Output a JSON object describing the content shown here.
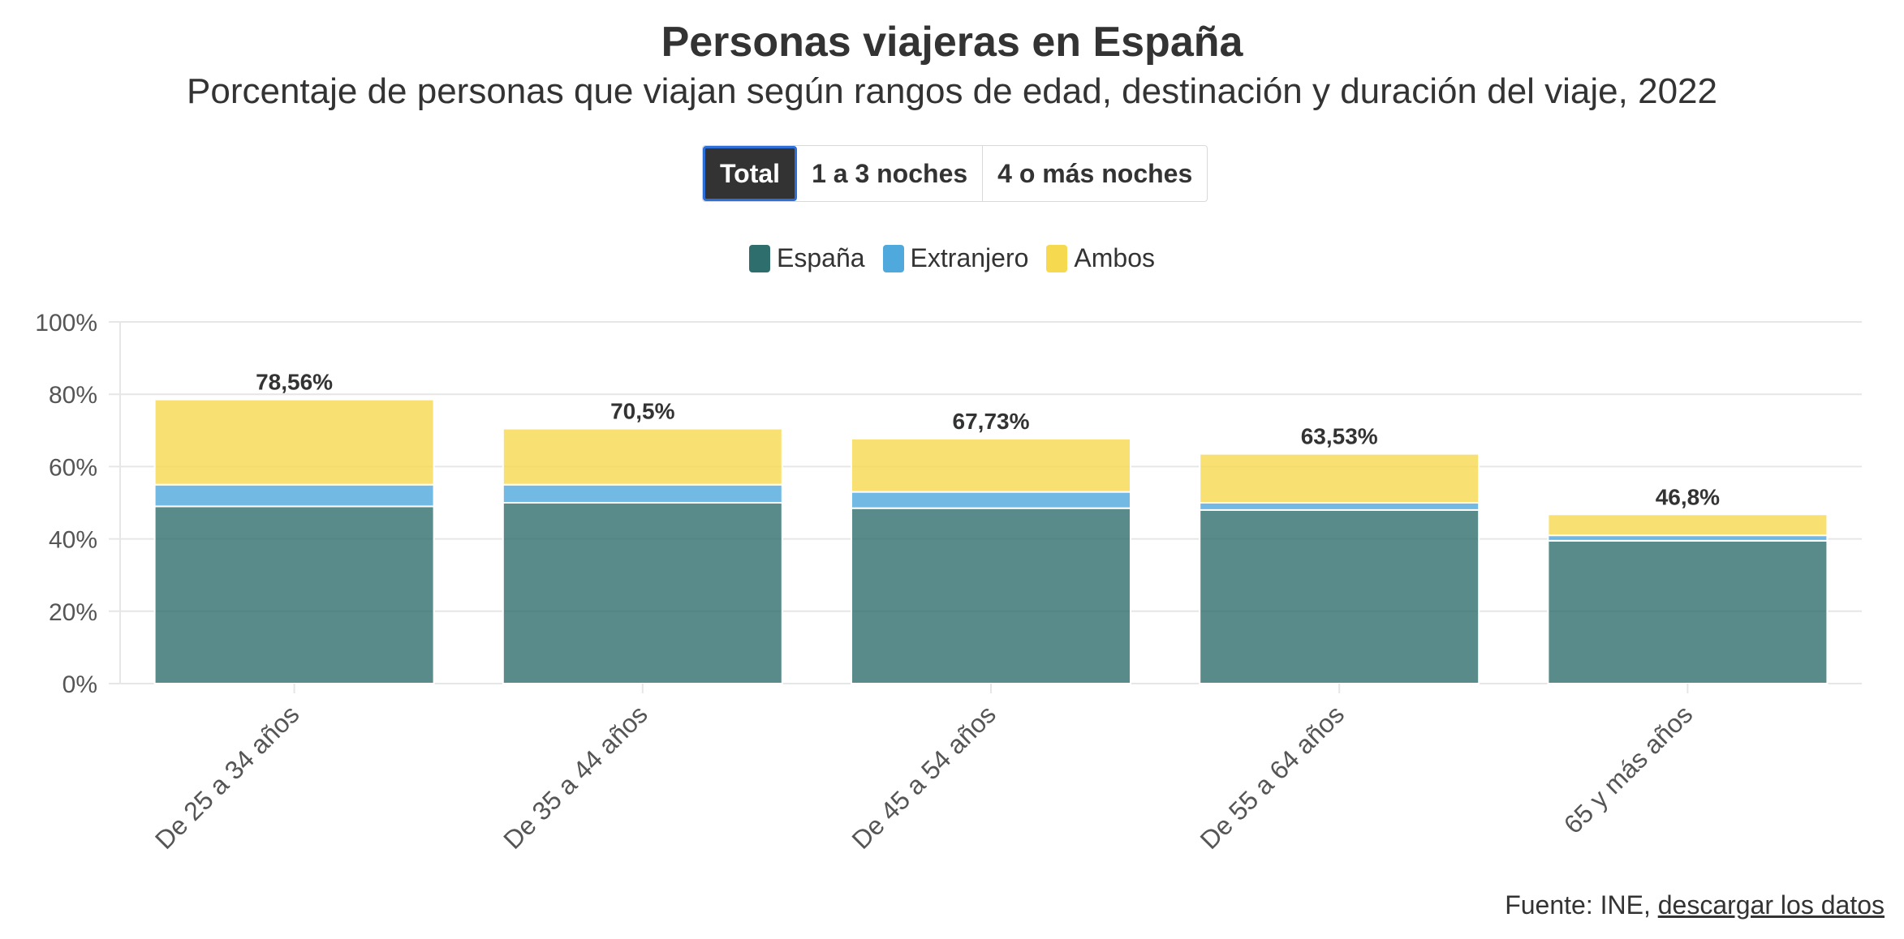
{
  "header": {
    "title": "Personas viajeras en España",
    "subtitle": "Porcentaje de personas que viajan según rangos de edad, destinación y duración del viaje, 2022"
  },
  "tabs": [
    {
      "label": "Total",
      "active": true
    },
    {
      "label": "1 a 3 noches",
      "active": false
    },
    {
      "label": "4 o más noches",
      "active": false
    }
  ],
  "legend": [
    {
      "label": "España",
      "color": "#2e6e6d"
    },
    {
      "label": "Extranjero",
      "color": "#4fa9dc"
    },
    {
      "label": "Ambos",
      "color": "#f6d94f"
    }
  ],
  "chart_data": {
    "type": "bar",
    "stacked": true,
    "categories": [
      "De 25 a 34 años",
      "De 35 a 44 años",
      "De 45 a 54 años",
      "De 55 a 64 años",
      "65 y más años"
    ],
    "series": [
      {
        "name": "España",
        "color": "#2e6e6d",
        "values": [
          49,
          50,
          48.5,
          48,
          39.5
        ]
      },
      {
        "name": "Extranjero",
        "color": "#4fa9dc",
        "values": [
          6,
          5,
          4.5,
          2,
          1.5
        ]
      },
      {
        "name": "Ambos",
        "color": "#f6d94f",
        "values": [
          23.56,
          15.5,
          14.73,
          13.53,
          5.8
        ]
      }
    ],
    "totals": [
      "78,56%",
      "70,5%",
      "67,73%",
      "63,53%",
      "46,8%"
    ],
    "ylim": [
      0,
      100
    ],
    "yticks": [
      0,
      20,
      40,
      60,
      80,
      100
    ],
    "ytick_labels": [
      "0%",
      "20%",
      "40%",
      "60%",
      "80%",
      "100%"
    ],
    "grid": true
  },
  "footer": {
    "source_prefix": "Fuente: INE, ",
    "source_link": "descargar los datos"
  }
}
